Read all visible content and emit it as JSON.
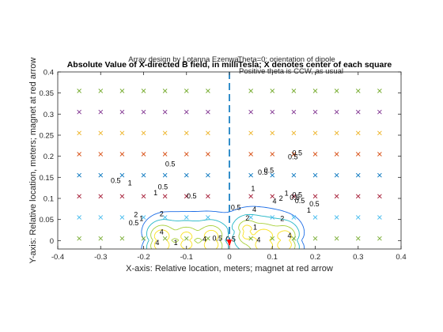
{
  "window": {
    "background": "#ffffff"
  },
  "chart_data": {
    "type": "contour",
    "title": "Absolute Value of X-directed B field, in milliTesla;  X denotes center of each square",
    "annotations": {
      "top_left": "Array design by Lotanna Ezenwa",
      "top_right_line1": "Theta=0: orientation of dipole",
      "top_right_line2": "Positive theta is CCW, as usual"
    },
    "xlabel": "X-axis: Relative location, meters;  magnet at red arrow",
    "ylabel": "Y-axis: Relative location, meters;  magnet at red arrow",
    "xlim": [
      -0.4,
      0.4
    ],
    "ylim": [
      -0.02,
      0.4
    ],
    "xticks": [
      -0.4,
      -0.3,
      -0.2,
      -0.1,
      0,
      0.1,
      0.2,
      0.3,
      0.4
    ],
    "xtick_labels": [
      "-0.4",
      "-0.3",
      "-0.2",
      "-0.1",
      "0",
      "0.1",
      "0.2",
      "0.3",
      "0.4"
    ],
    "yticks": [
      0,
      0.05,
      0.1,
      0.15,
      0.2,
      0.25,
      0.3,
      0.35,
      0.4
    ],
    "ytick_labels": [
      "0",
      "0.05",
      "0.1",
      "0.15",
      "0.2",
      "0.25",
      "0.3",
      "0.35",
      "0.4"
    ],
    "grid": false,
    "centerline_x": 0,
    "centerline_color": "#0072BD",
    "magnet_arrow": {
      "x": 0,
      "y": 0,
      "color": "#ff0000"
    },
    "marker_x": [
      -0.35,
      -0.3,
      -0.25,
      -0.2,
      -0.15,
      -0.1,
      -0.05,
      0.05,
      0.1,
      0.15,
      0.2,
      0.25,
      0.3,
      0.35
    ],
    "marker_rows": [
      {
        "y": 0.355,
        "color": "#77AC30"
      },
      {
        "y": 0.305,
        "color": "#7E2F8E"
      },
      {
        "y": 0.255,
        "color": "#EDB120"
      },
      {
        "y": 0.205,
        "color": "#D95319"
      },
      {
        "y": 0.155,
        "color": "#0072BD"
      },
      {
        "y": 0.105,
        "color": "#A2142F"
      },
      {
        "y": 0.055,
        "color": "#4DBEEE"
      },
      {
        "y": 0.005,
        "color": "#77AC30"
      }
    ],
    "contour_levels": [
      0.5,
      1,
      2,
      4
    ],
    "contour_colors": [
      "#3e26a8",
      "#1a6ce6",
      "#21b6c6",
      "#a8d03a",
      "#f9e11e"
    ],
    "contour_labels": [
      {
        "text": "0.5",
        "x": -0.265,
        "y": 0.142
      },
      {
        "text": "1",
        "x": -0.232,
        "y": 0.137
      },
      {
        "text": "0.5",
        "x": -0.138,
        "y": 0.182
      },
      {
        "text": "0.5",
        "x": -0.088,
        "y": 0.106
      },
      {
        "text": "0.5",
        "x": -0.155,
        "y": 0.127
      },
      {
        "text": "1",
        "x": -0.172,
        "y": 0.113
      },
      {
        "text": "2",
        "x": -0.218,
        "y": 0.062
      },
      {
        "text": "0.5",
        "x": -0.223,
        "y": 0.042
      },
      {
        "text": "1",
        "x": -0.205,
        "y": 0.052
      },
      {
        "text": "2",
        "x": -0.158,
        "y": 0.063
      },
      {
        "text": "4",
        "x": -0.158,
        "y": 0.02
      },
      {
        "text": "0.5",
        "x": -0.028,
        "y": 0.005
      },
      {
        "text": "4",
        "x": -0.058,
        "y": 0.003
      },
      {
        "text": "4",
        "x": -0.168,
        "y": -0.005
      },
      {
        "text": "1",
        "x": -0.125,
        "y": -0.005
      },
      {
        "text": "0.5",
        "x": 0.015,
        "y": 0.078
      },
      {
        "text": "1",
        "x": 0.055,
        "y": 0.123
      },
      {
        "text": "0.5",
        "x": 0.078,
        "y": 0.162
      },
      {
        "text": "0.5",
        "x": 0.092,
        "y": 0.167
      },
      {
        "text": "0.5",
        "x": 0.148,
        "y": 0.198
      },
      {
        "text": "0.5",
        "x": 0.158,
        "y": 0.208
      },
      {
        "text": "1",
        "x": 0.133,
        "y": 0.112
      },
      {
        "text": "0.5",
        "x": 0.152,
        "y": 0.102
      },
      {
        "text": "0.5",
        "x": 0.164,
        "y": 0.094
      },
      {
        "text": "0.5",
        "x": 0.158,
        "y": 0.108
      },
      {
        "text": "4",
        "x": 0.105,
        "y": 0.093
      },
      {
        "text": "2",
        "x": 0.12,
        "y": 0.1
      },
      {
        "text": "4",
        "x": 0.058,
        "y": 0.074
      },
      {
        "text": "2",
        "x": 0.042,
        "y": 0.053
      },
      {
        "text": "1",
        "x": 0.06,
        "y": 0.032
      },
      {
        "text": "2",
        "x": 0.123,
        "y": 0.052
      },
      {
        "text": "4",
        "x": 0.14,
        "y": 0.012
      },
      {
        "text": "4",
        "x": 0.068,
        "y": 0.002
      },
      {
        "text": "0.5",
        "x": 0.198,
        "y": 0.087
      },
      {
        "text": "1",
        "x": 0.185,
        "y": 0.072
      },
      {
        "text": "0.5",
        "x": 0.003,
        "y": 0.003
      }
    ]
  }
}
